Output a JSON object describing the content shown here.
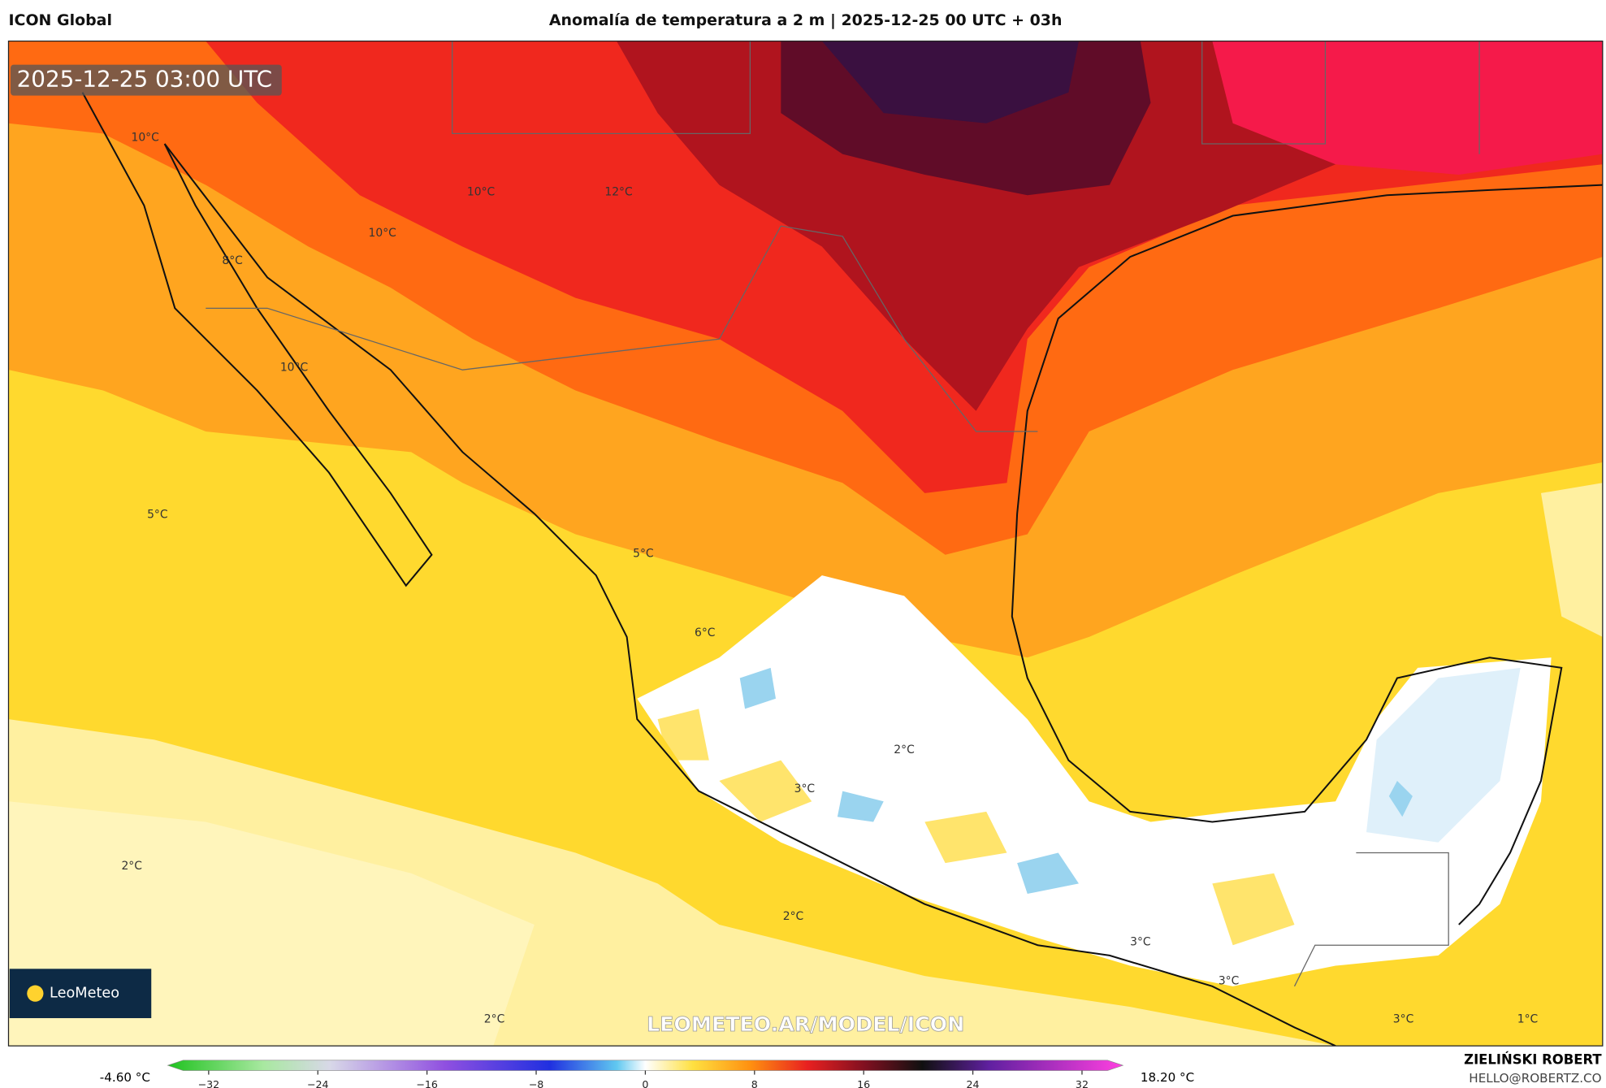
{
  "header": {
    "model": "ICON Global",
    "title": "Anomalía de temperatura a 2 m | 2025-12-25 00 UTC + 03h"
  },
  "map": {
    "timestamp": "2025-12-25 03:00 UTC",
    "contour_labels": [
      "10°C",
      "10°C",
      "12°C",
      "10°C",
      "8°C",
      "10°C",
      "5°C",
      "5°C",
      "6°C",
      "2°C",
      "3°C",
      "2°C",
      "2°C",
      "3°C",
      "3°C",
      "2°C",
      "3°C",
      "1°C"
    ],
    "watermark": "LEOMETEO.AR/MODEL/ICON",
    "logo": "LeoMeteo"
  },
  "colorbar": {
    "min_label": "-4.60 °C",
    "max_label": "18.20 °C",
    "range": [
      -35,
      35
    ],
    "ticks": [
      {
        "value": -32,
        "label": "−32"
      },
      {
        "value": -24,
        "label": "−24"
      },
      {
        "value": -16,
        "label": "−16"
      },
      {
        "value": -8,
        "label": "−8"
      },
      0,
      8,
      16,
      24,
      32
    ]
  },
  "credits": {
    "author": "ZIELIŃSKI ROBERT",
    "email": "HELLO@ROBERTZ.CO"
  }
}
